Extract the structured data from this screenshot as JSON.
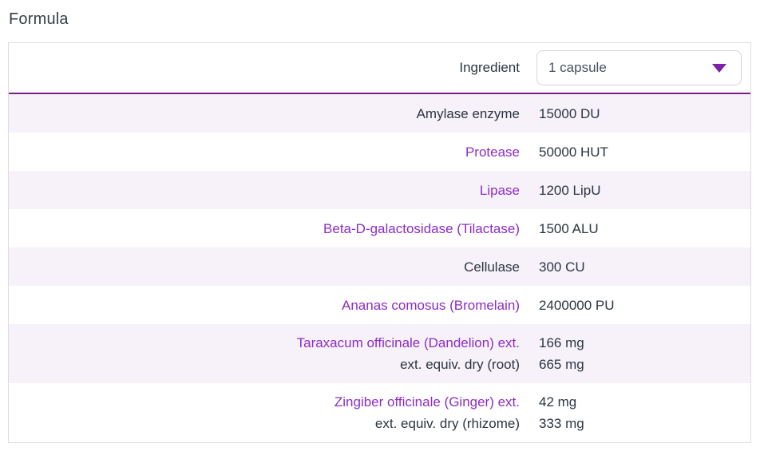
{
  "page": {
    "title": "Formula"
  },
  "table": {
    "header": {
      "ingredient_label": "Ingredient",
      "serving_select_value": "1 capsule"
    },
    "rows": [
      {
        "lines": [
          {
            "text": "Amylase enzyme",
            "link": false
          }
        ],
        "amounts": [
          "15000 DU"
        ]
      },
      {
        "lines": [
          {
            "text": "Protease",
            "link": true
          }
        ],
        "amounts": [
          "50000 HUT"
        ]
      },
      {
        "lines": [
          {
            "text": "Lipase",
            "link": true
          }
        ],
        "amounts": [
          "1200 LipU"
        ]
      },
      {
        "lines": [
          {
            "text": "Beta-D-galactosidase (Tilactase)",
            "link": true
          }
        ],
        "amounts": [
          "1500 ALU"
        ]
      },
      {
        "lines": [
          {
            "text": "Cellulase",
            "link": false
          }
        ],
        "amounts": [
          "300 CU"
        ]
      },
      {
        "lines": [
          {
            "text": "Ananas comosus (Bromelain)",
            "link": true
          }
        ],
        "amounts": [
          "2400000 PU"
        ]
      },
      {
        "lines": [
          {
            "text": "Taraxacum officinale (Dandelion) ext.",
            "link": true
          },
          {
            "text": "ext. equiv. dry (root)",
            "link": false
          }
        ],
        "amounts": [
          "166 mg",
          "665 mg"
        ]
      },
      {
        "lines": [
          {
            "text": "Zingiber officinale (Ginger) ext.",
            "link": true
          },
          {
            "text": "ext. equiv. dry (rhizome)",
            "link": false
          }
        ],
        "amounts": [
          "42 mg",
          "333 mg"
        ]
      }
    ]
  },
  "colors": {
    "accent_purple": "#8d2cc4",
    "header_border_purple": "#782081",
    "shaded_row_background": "#f7f2fa",
    "dark_text": "#2b3540",
    "table_border": "#dddce1"
  },
  "icons": {
    "dropdown_arrow": "triangle-down"
  }
}
